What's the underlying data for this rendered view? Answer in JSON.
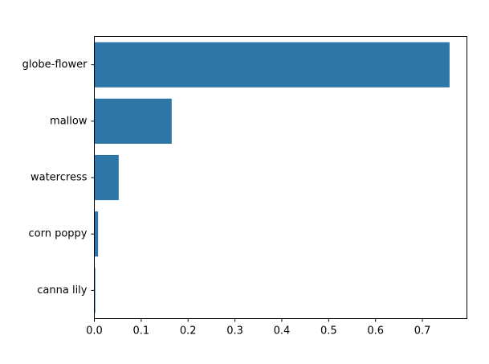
{
  "chart_data": {
    "type": "bar",
    "orientation": "horizontal",
    "title": "",
    "xlabel": "",
    "ylabel": "",
    "categories": [
      "globe-flower",
      "mallow",
      "watercress",
      "corn poppy",
      "canna lily"
    ],
    "values": [
      0.758,
      0.165,
      0.052,
      0.008,
      0.002
    ],
    "xlim": [
      0,
      0.795
    ],
    "xticks": [
      0.0,
      0.1,
      0.2,
      0.3,
      0.4,
      0.5,
      0.6,
      0.7
    ],
    "xtick_labels": [
      "0.0",
      "0.1",
      "0.2",
      "0.3",
      "0.4",
      "0.5",
      "0.6",
      "0.7"
    ],
    "grid": false,
    "legend": "none",
    "bar_color": "#2e75a8"
  }
}
